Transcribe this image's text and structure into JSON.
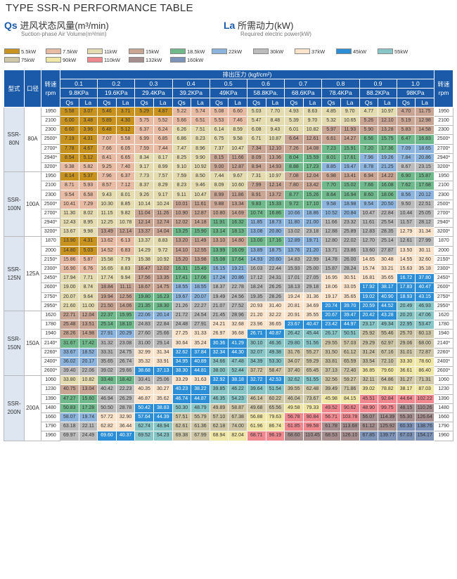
{
  "title": "TYPE SSR-N PERFORMANCE TABLE",
  "qs": {
    "sym": "Qs",
    "cn": "进风状态风量(m³/min)",
    "sub": "Suction-phase Air Volume(m³/min)"
  },
  "la": {
    "sym": "La",
    "cn": "所需动力(kW)",
    "sub": "Required electric power(kW)"
  },
  "legend": [
    {
      "label": "5.5kW",
      "color": "#c8921e"
    },
    {
      "label": "7.5kW",
      "color": "#e8bca4"
    },
    {
      "label": "11kW",
      "color": "#e4dcb0"
    },
    {
      "label": "15kW",
      "color": "#c9a594"
    },
    {
      "label": "18.5kW",
      "color": "#6fb98c"
    },
    {
      "label": "22kW",
      "color": "#8cb4dc"
    },
    {
      "label": "30kW",
      "color": "#bcbcbc"
    },
    {
      "label": "37kW",
      "color": "#fce4cc"
    },
    {
      "label": "45kW",
      "color": "#2c8ed6"
    },
    {
      "label": "55kW",
      "color": "#88c6c8"
    },
    {
      "label": "75kW",
      "color": "#cfc7a8"
    },
    {
      "label": "90kW",
      "color": "#f0e6a6"
    },
    {
      "label": "110kW",
      "color": "#f08890"
    },
    {
      "label": "132kW",
      "color": "#a88f8f"
    },
    {
      "label": "160kW",
      "color": "#7d93b8"
    }
  ],
  "header": {
    "model": "型式",
    "bore": "口径",
    "speed": "转速",
    "rpm": "rpm",
    "pressure": "排出压力 (kgf/cm²)",
    "p": [
      "0.1",
      "0.2",
      "0.3",
      "0.4",
      "0.5",
      "0.6",
      "0.7",
      "0.8",
      "0.9",
      "1.0"
    ],
    "kpa": [
      "9.8KPa",
      "19.6KPa",
      "29.4KPa",
      "39.2KPa",
      "49KPa",
      "58.8KPa.",
      "68.6KPa",
      "78.4KPa",
      "88.2KPa",
      "98KPa"
    ],
    "qs": "Qs",
    "la": "La"
  },
  "groups": [
    {
      "model": "SSR-\n80N",
      "bore": "80A",
      "rows": [
        [
          "1950",
          "5.58",
          "3.07",
          "5.46",
          "3.71",
          "5.29",
          "4.87",
          "5.22",
          "5.74",
          "5.08",
          "6.60",
          "5.03",
          "7.70",
          "4.93",
          "8.63",
          "4.85",
          "9.70",
          "4.77",
          "10.97",
          "4.70",
          "11.75",
          "1950"
        ],
        [
          "2100",
          "6.00",
          "3.48",
          "5.89",
          "4.30",
          "5.75",
          "5.52",
          "5.66",
          "6.51",
          "5.53",
          "7.46",
          "5.47",
          "8.48",
          "5.39",
          "9.70",
          "5.32",
          "10.65",
          "5.26",
          "12.10",
          "5.19",
          "12.98",
          "2100"
        ],
        [
          "2300",
          "6.60",
          "3.96",
          "6.48",
          "5.12",
          "6.37",
          "6.24",
          "6.26",
          "7.51",
          "6.14",
          "8.59",
          "6.08",
          "9.43",
          "6.01",
          "10.82",
          "5.97",
          "11.93",
          "5.90",
          "13.28",
          "5.83",
          "14.58",
          "2300"
        ],
        [
          "2500*",
          "7.19",
          "4.31",
          "7.07",
          "5.58",
          "6.99",
          "6.85",
          "6.86",
          "8.23",
          "6.75",
          "9.58",
          "6.71",
          "10.87",
          "6.64",
          "12.61",
          "6.61",
          "14.27",
          "6.56",
          "15.75",
          "6.47",
          "16.83",
          "2500*"
        ],
        [
          "2700*",
          "7.78",
          "4.67",
          "7.66",
          "6.05",
          "7.59",
          "7.44",
          "7.47",
          "8.96",
          "7.37",
          "10.47",
          "7.34",
          "12.10",
          "7.26",
          "14.08",
          "7.23",
          "15.91",
          "7.20",
          "17.36",
          "7.09",
          "18.65",
          "2700*"
        ],
        [
          "2940*",
          "8.54",
          "5.12",
          "8.41",
          "6.65",
          "8.34",
          "8.17",
          "8.25",
          "9.90",
          "8.15",
          "11.66",
          "8.09",
          "13.36",
          "8.04",
          "15.59",
          "8.01",
          "17.61",
          "7.96",
          "19.26",
          "7.84",
          "20.86",
          "2940*"
        ],
        [
          "3200*",
          "9.38",
          "5.82",
          "9.25",
          "7.40",
          "9.17",
          "8.99",
          "9.10",
          "10.92",
          "9.00",
          "12.87",
          "8.94",
          "14.93",
          "8.88",
          "17.23",
          "8.85",
          "19.47",
          "8.78",
          "21.25",
          "8.67",
          "23.15",
          "3200*"
        ]
      ]
    },
    {
      "model": "SSR-\n100N",
      "bore": "100A",
      "rows": [
        [
          "1950",
          "8.14",
          "5.37",
          "7.96",
          "6.37",
          "7.73",
          "7.57",
          "7.59",
          "8.50",
          "7.44",
          "9.67",
          "7.31",
          "10.97",
          "7.08",
          "12.04",
          "6.98",
          "13.41",
          "6.94",
          "14.22",
          "6.90",
          "15.87",
          "1950"
        ],
        [
          "2100",
          "8.71",
          "5.93",
          "8.57",
          "7.12",
          "8.37",
          "8.29",
          "8.23",
          "9.46",
          "8.09",
          "10.60",
          "7.99",
          "12.14",
          "7.80",
          "13.42",
          "7.70",
          "15.02",
          "7.66",
          "16.08",
          "7.62",
          "17.68",
          "2100"
        ],
        [
          "2300",
          "9.54",
          "6.58",
          "9.43",
          "8.01",
          "9.26",
          "9.17",
          "9.11",
          "10.47",
          "8.99",
          "11.86",
          "8.91",
          "13.72",
          "8.77",
          "15.26",
          "8.64",
          "16.94",
          "8.60",
          "18.06",
          "8.56",
          "20.12",
          "2300"
        ],
        [
          "2500*",
          "10.41",
          "7.29",
          "10.30",
          "8.85",
          "10.14",
          "10.24",
          "10.01",
          "11.61",
          "9.88",
          "13.34",
          "9.83",
          "15.33",
          "9.72",
          "17.10",
          "9.58",
          "18.98",
          "9.54",
          "20.50",
          "9.50",
          "22.51",
          "2500*"
        ],
        [
          "2700*",
          "11.30",
          "8.02",
          "11.15",
          "9.82",
          "11.04",
          "11.26",
          "10.90",
          "12.87",
          "10.80",
          "14.69",
          "10.74",
          "16.86",
          "10.66",
          "18.86",
          "10.52",
          "20.84",
          "10.47",
          "22.84",
          "10.44",
          "25.05",
          "2700*"
        ],
        [
          "2940*",
          "12.43",
          "8.95",
          "12.25",
          "10.78",
          "12.14",
          "12.74",
          "12.02",
          "14.18",
          "11.91",
          "16.32",
          "11.85",
          "18.73",
          "11.80",
          "21.00",
          "11.66",
          "23.32",
          "11.61",
          "25.54",
          "11.57",
          "28.12",
          "2940*"
        ],
        [
          "3200*",
          "13.67",
          "9.98",
          "13.49",
          "12.14",
          "13.37",
          "14.04",
          "13.25",
          "15.90",
          "13.14",
          "18.13",
          "13.08",
          "20.80",
          "13.02",
          "23.18",
          "12.88",
          "25.89",
          "12.83",
          "28.35",
          "12.79",
          "31.34",
          "3200*"
        ]
      ]
    },
    {
      "model": "SSR-\n125N",
      "bore": "125A",
      "rows": [
        [
          "1870",
          "13.90",
          "4.31",
          "13.62",
          "6.13",
          "13.37",
          "8.83",
          "13.20",
          "11.49",
          "13.10",
          "14.80",
          "13.00",
          "17.16",
          "12.89",
          "19.71",
          "12.80",
          "22.02",
          "12.70",
          "25.14",
          "12.61",
          "27.99",
          "1870"
        ],
        [
          "2000",
          "14.80",
          "5.03",
          "14.52",
          "6.83",
          "14.29",
          "9.72",
          "14.10",
          "12.55",
          "13.99",
          "16.09",
          "13.89",
          "18.75",
          "13.76",
          "21.20",
          "13.71",
          "23.86",
          "13.60",
          "27.87",
          "13.50",
          "30.11",
          "2000"
        ],
        [
          "2150*",
          "15.86",
          "5.87",
          "15.58",
          "7.79",
          "15.38",
          "10.92",
          "15.20",
          "13.98",
          "15.08",
          "17.64",
          "14.93",
          "20.60",
          "14.83",
          "22.99",
          "14.78",
          "26.00",
          "14.65",
          "30.48",
          "14.55",
          "32.60",
          "2150*"
        ],
        [
          "2300*",
          "16.90",
          "6.76",
          "16.65",
          "8.83",
          "16.47",
          "12.02",
          "16.31",
          "15.49",
          "16.15",
          "19.21",
          "16.03",
          "22.44",
          "15.93",
          "25.00",
          "15.87",
          "28.24",
          "15.74",
          "33.21",
          "15.63",
          "35.18",
          "2300*"
        ],
        [
          "2450*",
          "17.94",
          "7.71",
          "17.74",
          "9.94",
          "17.56",
          "13.35",
          "17.41",
          "17.06",
          "17.24",
          "20.86",
          "17.12",
          "24.31",
          "17.01",
          "27.05",
          "16.95",
          "30.51",
          "16.81",
          "35.65",
          "16.72",
          "37.80",
          "2450*"
        ],
        [
          "2600*",
          "19.00",
          "8.74",
          "18.84",
          "11.11",
          "18.67",
          "14.75",
          "18.55",
          "18.55",
          "18.37",
          "22.78",
          "18.24",
          "26.26",
          "18.13",
          "29.18",
          "18.06",
          "33.05",
          "17.92",
          "38.17",
          "17.83",
          "40.47",
          "2600*"
        ],
        [
          "2750*",
          "20.07",
          "9.64",
          "19.94",
          "12.56",
          "19.80",
          "16.23",
          "19.67",
          "20.07",
          "19.49",
          "24.56",
          "19.35",
          "28.26",
          "19.24",
          "31.36",
          "19.17",
          "35.65",
          "19.02",
          "40.90",
          "18.93",
          "43.15",
          "2750*"
        ],
        [
          "2950*",
          "21.60",
          "11.00",
          "21.50",
          "14.06",
          "21.35",
          "18.30",
          "21.26",
          "22.27",
          "21.07",
          "27.52",
          "20.93",
          "31.40",
          "20.81",
          "34.69",
          "20.74",
          "39.70",
          "20.59",
          "44.52",
          "20.49",
          "46.93",
          "2950*"
        ]
      ]
    },
    {
      "model": "SSR-\n150N",
      "bore": "150A",
      "rows": [
        [
          "1620",
          "22.71",
          "12.04",
          "22.37",
          "15.95",
          "22.06",
          "20.14",
          "21.72",
          "24.54",
          "21.45",
          "28.96",
          "21.20",
          "32.22",
          "20.91",
          "35.55",
          "20.67",
          "39.47",
          "20.42",
          "43.28",
          "20.20",
          "47.06",
          "1620"
        ],
        [
          "1780",
          "25.48",
          "13.51",
          "25.14",
          "18.10",
          "24.83",
          "22.84",
          "24.48",
          "27.91",
          "24.21",
          "32.68",
          "23.96",
          "36.65",
          "23.67",
          "40.47",
          "23.42",
          "44.97",
          "23.17",
          "49.34",
          "22.95",
          "53.47",
          "1780"
        ],
        [
          "1940",
          "28.26",
          "14.98",
          "27.91",
          "20.29",
          "27.60",
          "25.66",
          "27.25",
          "31.33",
          "26.97",
          "36.68",
          "26.71",
          "40.87",
          "26.42",
          "45.44",
          "26.17",
          "50.51",
          "25.92",
          "55.46",
          "25.70",
          "60.13",
          "1940"
        ],
        [
          "2140*",
          "31.67",
          "17.42",
          "31.32",
          "23.08",
          "31.00",
          "29.14",
          "30.64",
          "35.24",
          "30.36",
          "41.29",
          "30.10",
          "46.36",
          "29.80",
          "51.56",
          "29.55",
          "57.03",
          "29.29",
          "62.97",
          "29.06",
          "68.00",
          "2140*"
        ],
        [
          "2260*",
          "33.67",
          "18.52",
          "33.31",
          "24.75",
          "32.99",
          "31.34",
          "32.62",
          "37.84",
          "32.34",
          "44.30",
          "32.07",
          "49.38",
          "31.76",
          "55.27",
          "31.50",
          "61.12",
          "31.24",
          "67.16",
          "31.01",
          "72.87",
          "2260*"
        ],
        [
          "2400*",
          "36.02",
          "20.17",
          "35.65",
          "26.74",
          "35.32",
          "33.91",
          "34.95",
          "40.89",
          "34.66",
          "47.48",
          "34.39",
          "53.30",
          "34.07",
          "59.29",
          "33.81",
          "65.59",
          "33.54",
          "72.10",
          "33.30",
          "78.60",
          "2400*"
        ],
        [
          "2600*",
          "39.40",
          "22.06",
          "39.02",
          "29.66",
          "38.68",
          "37.13",
          "38.30",
          "44.81",
          "38.00",
          "52.44",
          "37.72",
          "58.47",
          "37.40",
          "65.45",
          "37.13",
          "72.40",
          "36.85",
          "79.60",
          "36.61",
          "86.40",
          "2600*"
        ]
      ]
    },
    {
      "model": "SSR-\n200N",
      "bore": "200A",
      "rows": [
        [
          "1060",
          "33.80",
          "10.82",
          "33.48",
          "18.42",
          "33.41",
          "25.06",
          "33.29",
          "31.63",
          "32.92",
          "38.18",
          "32.72",
          "42.53",
          "32.62",
          "51.55",
          "32.56",
          "59.27",
          "32.11",
          "64.86",
          "31.27",
          "71.31",
          "1060"
        ],
        [
          "1230",
          "40.75",
          "13.04",
          "40.42",
          "22.23",
          "40.35",
          "30.27",
          "40.23",
          "38.22",
          "39.85",
          "46.22",
          "39.64",
          "51.54",
          "39.55",
          "62.48",
          "39.49",
          "71.86",
          "39.02",
          "78.82",
          "38.17",
          "87.03",
          "1230"
        ],
        [
          "1390",
          "47.27",
          "15.60",
          "46.94",
          "26.29",
          "46.87",
          "35.62",
          "46.74",
          "44.87",
          "46.35",
          "54.23",
          "46.14",
          "60.22",
          "46.04",
          "73.67",
          "45.98",
          "84.15",
          "45.51",
          "92.84",
          "44.64",
          "102.22",
          "1390"
        ],
        [
          "1480",
          "50.83",
          "17.28",
          "50.50",
          "28.78",
          "50.42",
          "38.83",
          "50.30",
          "48.79",
          "49.89",
          "58.87",
          "49.68",
          "65.56",
          "49.58",
          "79.33",
          "49.52",
          "90.62",
          "48.90",
          "99.75",
          "48.15",
          "110.26",
          "1480"
        ],
        [
          "1660",
          "58.07",
          "19.74",
          "57.72",
          "32.90",
          "57.64",
          "44.39",
          "57.51",
          "55.79",
          "57.10",
          "67.38",
          "56.88",
          "79.63",
          "56.78",
          "90.84",
          "56.71",
          "103.78",
          "56.07",
          "114.39",
          "55.30",
          "126.64",
          "1660"
        ],
        [
          "1790",
          "63.18",
          "22.11",
          "62.82",
          "36.44",
          "62.74",
          "48.94",
          "62.61",
          "61.36",
          "62.18",
          "74.00",
          "61.96",
          "86.74",
          "61.85",
          "99.58",
          "61.78",
          "113.68",
          "61.12",
          "125.92",
          "60.33",
          "138.76",
          "1790"
        ],
        [
          "1960",
          "69.97",
          "24.49",
          "69.60",
          "40.37",
          "69.52",
          "54.23",
          "69.38",
          "67.99",
          "68.94",
          "82.04",
          "68.71",
          "96.19",
          "68.60",
          "110.45",
          "68.53",
          "126.10",
          "67.85",
          "139.77",
          "67.03",
          "154.17",
          "1960"
        ]
      ]
    }
  ]
}
